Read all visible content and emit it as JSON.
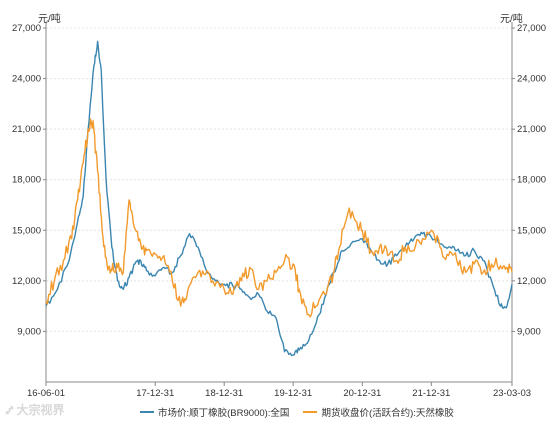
{
  "unit_left": "元/吨",
  "unit_right": "元/吨",
  "watermark": "大宗视界",
  "colors": {
    "series1": "#3a86b0",
    "series2": "#f39a2d",
    "grid": "#e4e4e4",
    "axis": "#888888"
  },
  "chart_data": {
    "type": "line",
    "ylim": [
      6000,
      27000
    ],
    "yticks": [
      9000,
      12000,
      15000,
      18000,
      21000,
      24000,
      27000
    ],
    "ytick_labels": [
      "9,000",
      "12,000",
      "15,000",
      "18,000",
      "21,000",
      "24,000",
      "27,000"
    ],
    "xlim": [
      "2016-06-01",
      "2023-03-03"
    ],
    "xticks": [
      "2016-06-01",
      "2017-12-31",
      "2018-12-31",
      "2019-12-31",
      "2020-12-31",
      "2021-12-31",
      "2023-03-03"
    ],
    "xtick_labels": [
      "16-06-01",
      "17-12-31",
      "18-12-31",
      "19-12-31",
      "20-12-31",
      "21-12-31",
      "23-03-03"
    ],
    "grid": true,
    "legend_position": "bottom",
    "series": [
      {
        "name": "市场价:顺丁橡胶(BR9000):全国",
        "x": [
          "2016-06-01",
          "2016-08-01",
          "2016-10-01",
          "2016-11-15",
          "2016-12-15",
          "2017-01-10",
          "2017-02-10",
          "2017-03-01",
          "2017-03-20",
          "2017-04-15",
          "2017-05-15",
          "2017-06-15",
          "2017-07-15",
          "2017-08-15",
          "2017-09-15",
          "2017-10-15",
          "2017-11-15",
          "2017-12-31",
          "2018-02-15",
          "2018-04-01",
          "2018-05-15",
          "2018-07-01",
          "2018-08-15",
          "2018-10-01",
          "2018-11-15",
          "2018-12-31",
          "2019-02-15",
          "2019-04-01",
          "2019-05-15",
          "2019-07-01",
          "2019-08-15",
          "2019-10-01",
          "2019-11-15",
          "2019-12-31",
          "2020-02-01",
          "2020-03-15",
          "2020-05-01",
          "2020-06-15",
          "2020-08-01",
          "2020-09-15",
          "2020-11-01",
          "2020-12-31",
          "2021-02-15",
          "2021-04-01",
          "2021-05-15",
          "2021-07-01",
          "2021-08-15",
          "2021-10-01",
          "2021-11-15",
          "2021-12-31",
          "2022-02-15",
          "2022-04-01",
          "2022-05-15",
          "2022-07-01",
          "2022-08-15",
          "2022-10-01",
          "2022-11-15",
          "2023-01-01",
          "2023-02-01",
          "2023-03-03"
        ],
        "values": [
          10500,
          11500,
          13200,
          15500,
          17000,
          21000,
          24800,
          26200,
          24500,
          18000,
          14000,
          12000,
          11500,
          12200,
          13000,
          13200,
          12600,
          12300,
          12800,
          12500,
          13500,
          14800,
          14000,
          12500,
          12000,
          11800,
          11700,
          11500,
          11000,
          11200,
          10200,
          9800,
          7800,
          7600,
          7900,
          8300,
          9500,
          11000,
          12500,
          13800,
          14200,
          14500,
          13800,
          13200,
          13000,
          13500,
          14000,
          14500,
          14800,
          14600,
          14200,
          14000,
          13800,
          13500,
          13800,
          13200,
          12000,
          10500,
          10400,
          11800
        ]
      },
      {
        "name": "期货收盘价(活跃合约):天然橡胶",
        "x": [
          "2016-06-01",
          "2016-07-15",
          "2016-09-01",
          "2016-10-15",
          "2016-11-15",
          "2016-12-15",
          "2017-01-10",
          "2017-02-05",
          "2017-03-01",
          "2017-03-25",
          "2017-04-20",
          "2017-05-15",
          "2017-06-15",
          "2017-07-15",
          "2017-08-15",
          "2017-09-10",
          "2017-10-15",
          "2017-11-15",
          "2017-12-31",
          "2018-02-15",
          "2018-04-01",
          "2018-05-15",
          "2018-06-15",
          "2018-08-01",
          "2018-09-15",
          "2018-11-01",
          "2018-12-31",
          "2019-02-15",
          "2019-04-01",
          "2019-05-15",
          "2019-07-01",
          "2019-08-15",
          "2019-10-01",
          "2019-11-15",
          "2019-12-31",
          "2020-02-01",
          "2020-03-15",
          "2020-05-01",
          "2020-06-15",
          "2020-08-01",
          "2020-09-01",
          "2020-10-15",
          "2020-12-01",
          "2020-12-31",
          "2021-02-15",
          "2021-04-01",
          "2021-05-15",
          "2021-07-01",
          "2021-08-15",
          "2021-10-01",
          "2021-11-15",
          "2021-12-31",
          "2022-02-15",
          "2022-04-01",
          "2022-05-15",
          "2022-07-01",
          "2022-08-15",
          "2022-10-01",
          "2022-11-15",
          "2023-01-01",
          "2023-02-01",
          "2023-03-03"
        ],
        "values": [
          10800,
          12000,
          13200,
          14500,
          16800,
          19000,
          21000,
          21500,
          18500,
          15000,
          13000,
          12600,
          12800,
          12500,
          16800,
          15200,
          14200,
          13800,
          13600,
          13500,
          12000,
          10500,
          11000,
          12200,
          12400,
          12000,
          11500,
          11200,
          12000,
          12800,
          11500,
          12000,
          12500,
          13200,
          13000,
          11500,
          10000,
          10500,
          11200,
          12500,
          14000,
          16000,
          15500,
          15000,
          13800,
          14000,
          13500,
          13200,
          14000,
          13800,
          14500,
          15000,
          14000,
          13500,
          13200,
          12500,
          13000,
          12500,
          13000,
          12900,
          12800,
          12500
        ]
      }
    ]
  }
}
